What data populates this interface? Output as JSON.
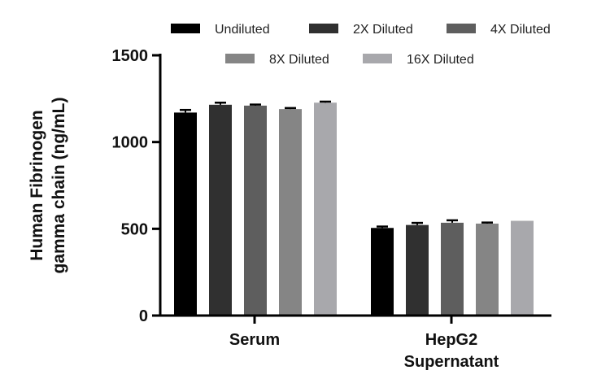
{
  "chart_data": {
    "type": "bar",
    "categories": [
      "Serum",
      "HepG2|Supernatant"
    ],
    "ylabel": [
      "Human Fibrinogen",
      "gamma chain (ng/mL)"
    ],
    "ylim": [
      0,
      1500
    ],
    "yticks": [
      "0",
      "500",
      "1000",
      "1500"
    ],
    "grid": false,
    "legend_position": "top",
    "series": [
      {
        "name": "Undiluted",
        "color": "#000000",
        "values": [
          1170,
          505
        ],
        "errors": [
          15,
          8
        ]
      },
      {
        "name": "2X Diluted",
        "color": "#303030",
        "values": [
          1215,
          522
        ],
        "errors": [
          12,
          12
        ]
      },
      {
        "name": "4X Diluted",
        "color": "#5e5e5e",
        "values": [
          1210,
          535
        ],
        "errors": [
          6,
          14
        ]
      },
      {
        "name": "8X Diluted",
        "color": "#858585",
        "values": [
          1190,
          530
        ],
        "errors": [
          6,
          6
        ]
      },
      {
        "name": "16X Diluted",
        "color": "#a8a8ac",
        "values": [
          1227,
          546
        ],
        "errors": [
          6,
          0
        ]
      }
    ]
  }
}
